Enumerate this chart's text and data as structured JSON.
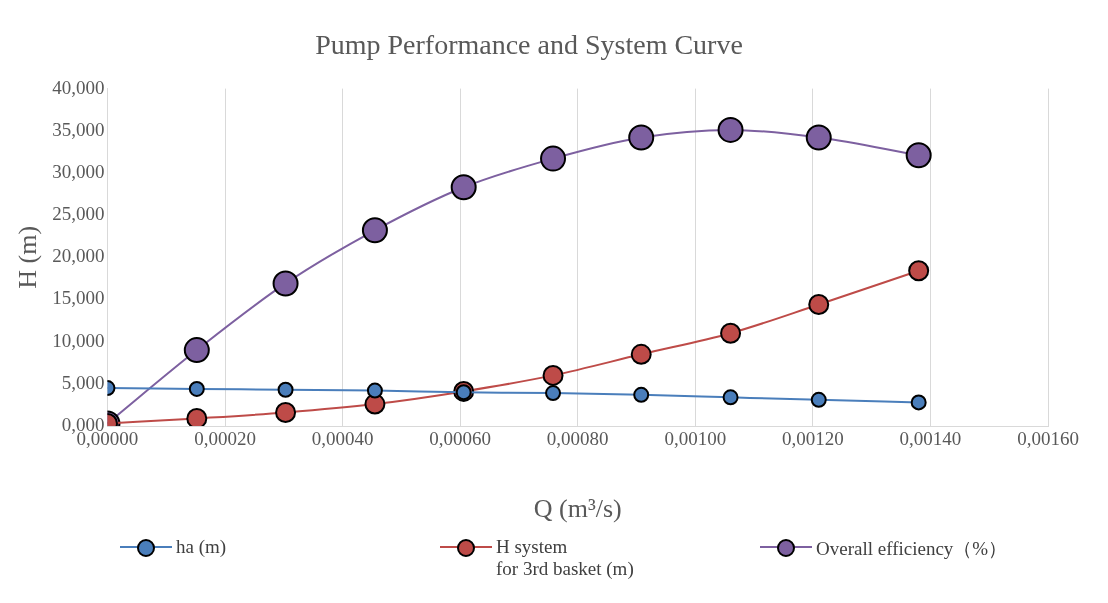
{
  "chart_data": {
    "type": "line",
    "title": "Pump Performance and System Curve",
    "xlabel": "Q (m³/s)",
    "ylabel": "H (m)",
    "x": [
      0,
      0.000152,
      0.000303,
      0.000455,
      0.000606,
      0.000758,
      0.000908,
      0.00106,
      0.00121,
      0.00138
    ],
    "series": [
      {
        "name": "ha (m)",
        "color": "#4a7ebb",
        "values": [
          4.5,
          4.4,
          4.3,
          4.2,
          4.0,
          3.9,
          3.7,
          3.4,
          3.1,
          2.8
        ]
      },
      {
        "name": "H system\nfor 3rd basket (m)",
        "color": "#be4b48",
        "values": [
          0.3,
          0.9,
          1.6,
          2.6,
          4.1,
          6.0,
          8.5,
          11.0,
          14.4,
          18.4
        ]
      },
      {
        "name": "Overall efficiency（%）",
        "color": "#7d60a0",
        "values": [
          0.3,
          9.0,
          16.9,
          23.2,
          28.3,
          31.7,
          34.2,
          35.1,
          34.2,
          32.1
        ]
      }
    ],
    "xlim": [
      0,
      0.0016
    ],
    "xticks": [
      {
        "value": 0,
        "label": "0,00000"
      },
      {
        "value": 0.0002,
        "label": "0,00020"
      },
      {
        "value": 0.0004,
        "label": "0,00040"
      },
      {
        "value": 0.0006,
        "label": "0,00060"
      },
      {
        "value": 0.0008,
        "label": "0,00080"
      },
      {
        "value": 0.001,
        "label": "0,00100"
      },
      {
        "value": 0.0012,
        "label": "0,00120"
      },
      {
        "value": 0.0014,
        "label": "0,00140"
      },
      {
        "value": 0.0016,
        "label": "0,00160"
      }
    ],
    "ylim": [
      0,
      40
    ],
    "yticks": [
      {
        "value": 0,
        "label": "0,000"
      },
      {
        "value": 5,
        "label": "5,000"
      },
      {
        "value": 10,
        "label": "10,000"
      },
      {
        "value": 15,
        "label": "15,000"
      },
      {
        "value": 20,
        "label": "20,000"
      },
      {
        "value": 25,
        "label": "25,000"
      },
      {
        "value": 30,
        "label": "30,000"
      },
      {
        "value": 35,
        "label": "35,000"
      },
      {
        "value": 40,
        "label": "40,000"
      }
    ],
    "grid": "x",
    "legend": "bottom",
    "marker": "circle",
    "line_style": "solid"
  }
}
